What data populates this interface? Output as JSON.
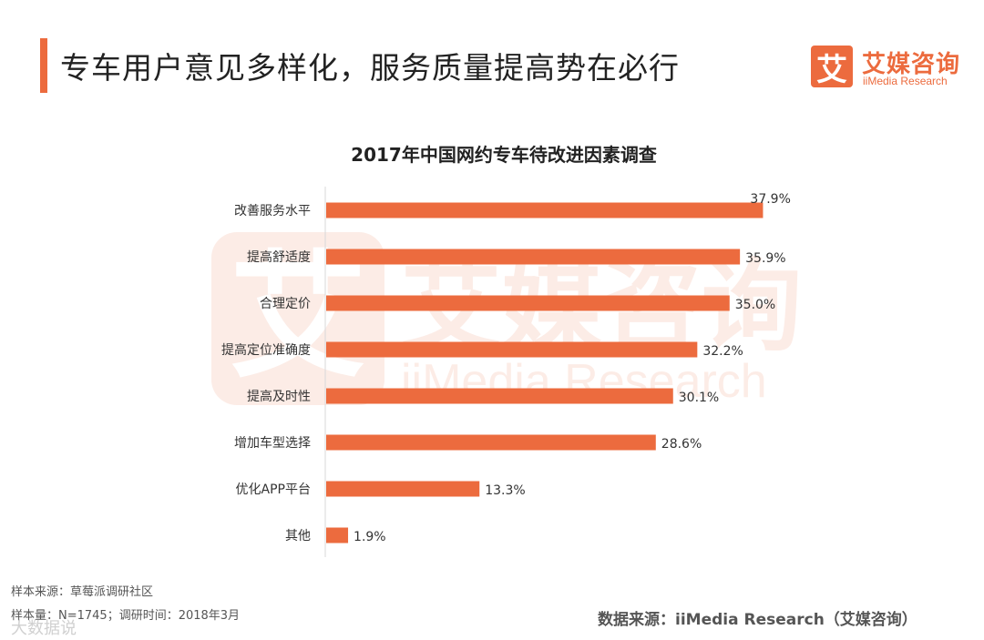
{
  "header": {
    "page_title": "专车用户意见多样化，服务质量提高势在必行",
    "brand_mark": "艾",
    "brand_name_cn": "艾媒咨询",
    "brand_name_en": "iiMedia Research"
  },
  "chart_data": {
    "type": "bar",
    "orientation": "horizontal",
    "title": "2017年中国网约专车待改进因素调查",
    "categories": [
      "改善服务水平",
      "提高舒适度",
      "合理定价",
      "提高定位准确度",
      "提高及时性",
      "增加车型选择",
      "优化APP平台",
      "其他"
    ],
    "values": [
      37.9,
      35.9,
      35.0,
      32.2,
      30.1,
      28.6,
      13.3,
      1.9
    ],
    "value_labels": [
      "37.9%",
      "35.9%",
      "35.0%",
      "32.2%",
      "30.1%",
      "28.6%",
      "13.3%",
      "1.9%"
    ],
    "xlabel": "",
    "ylabel": "",
    "xlim": [
      0,
      40
    ],
    "grid": false,
    "legend": "none",
    "bar_color": "#ec6b3e"
  },
  "watermark": {
    "mark": "艾",
    "cn": "艾媒咨询",
    "en": "iiMedia Research"
  },
  "footer": {
    "sample_source": "样本来源：草莓派调研社区",
    "sample_size": "样本量：N=1745；调研时间：2018年3月",
    "data_source": "数据来源：iiMedia Research（艾媒咨询）",
    "corner_mark": "大数据说"
  }
}
